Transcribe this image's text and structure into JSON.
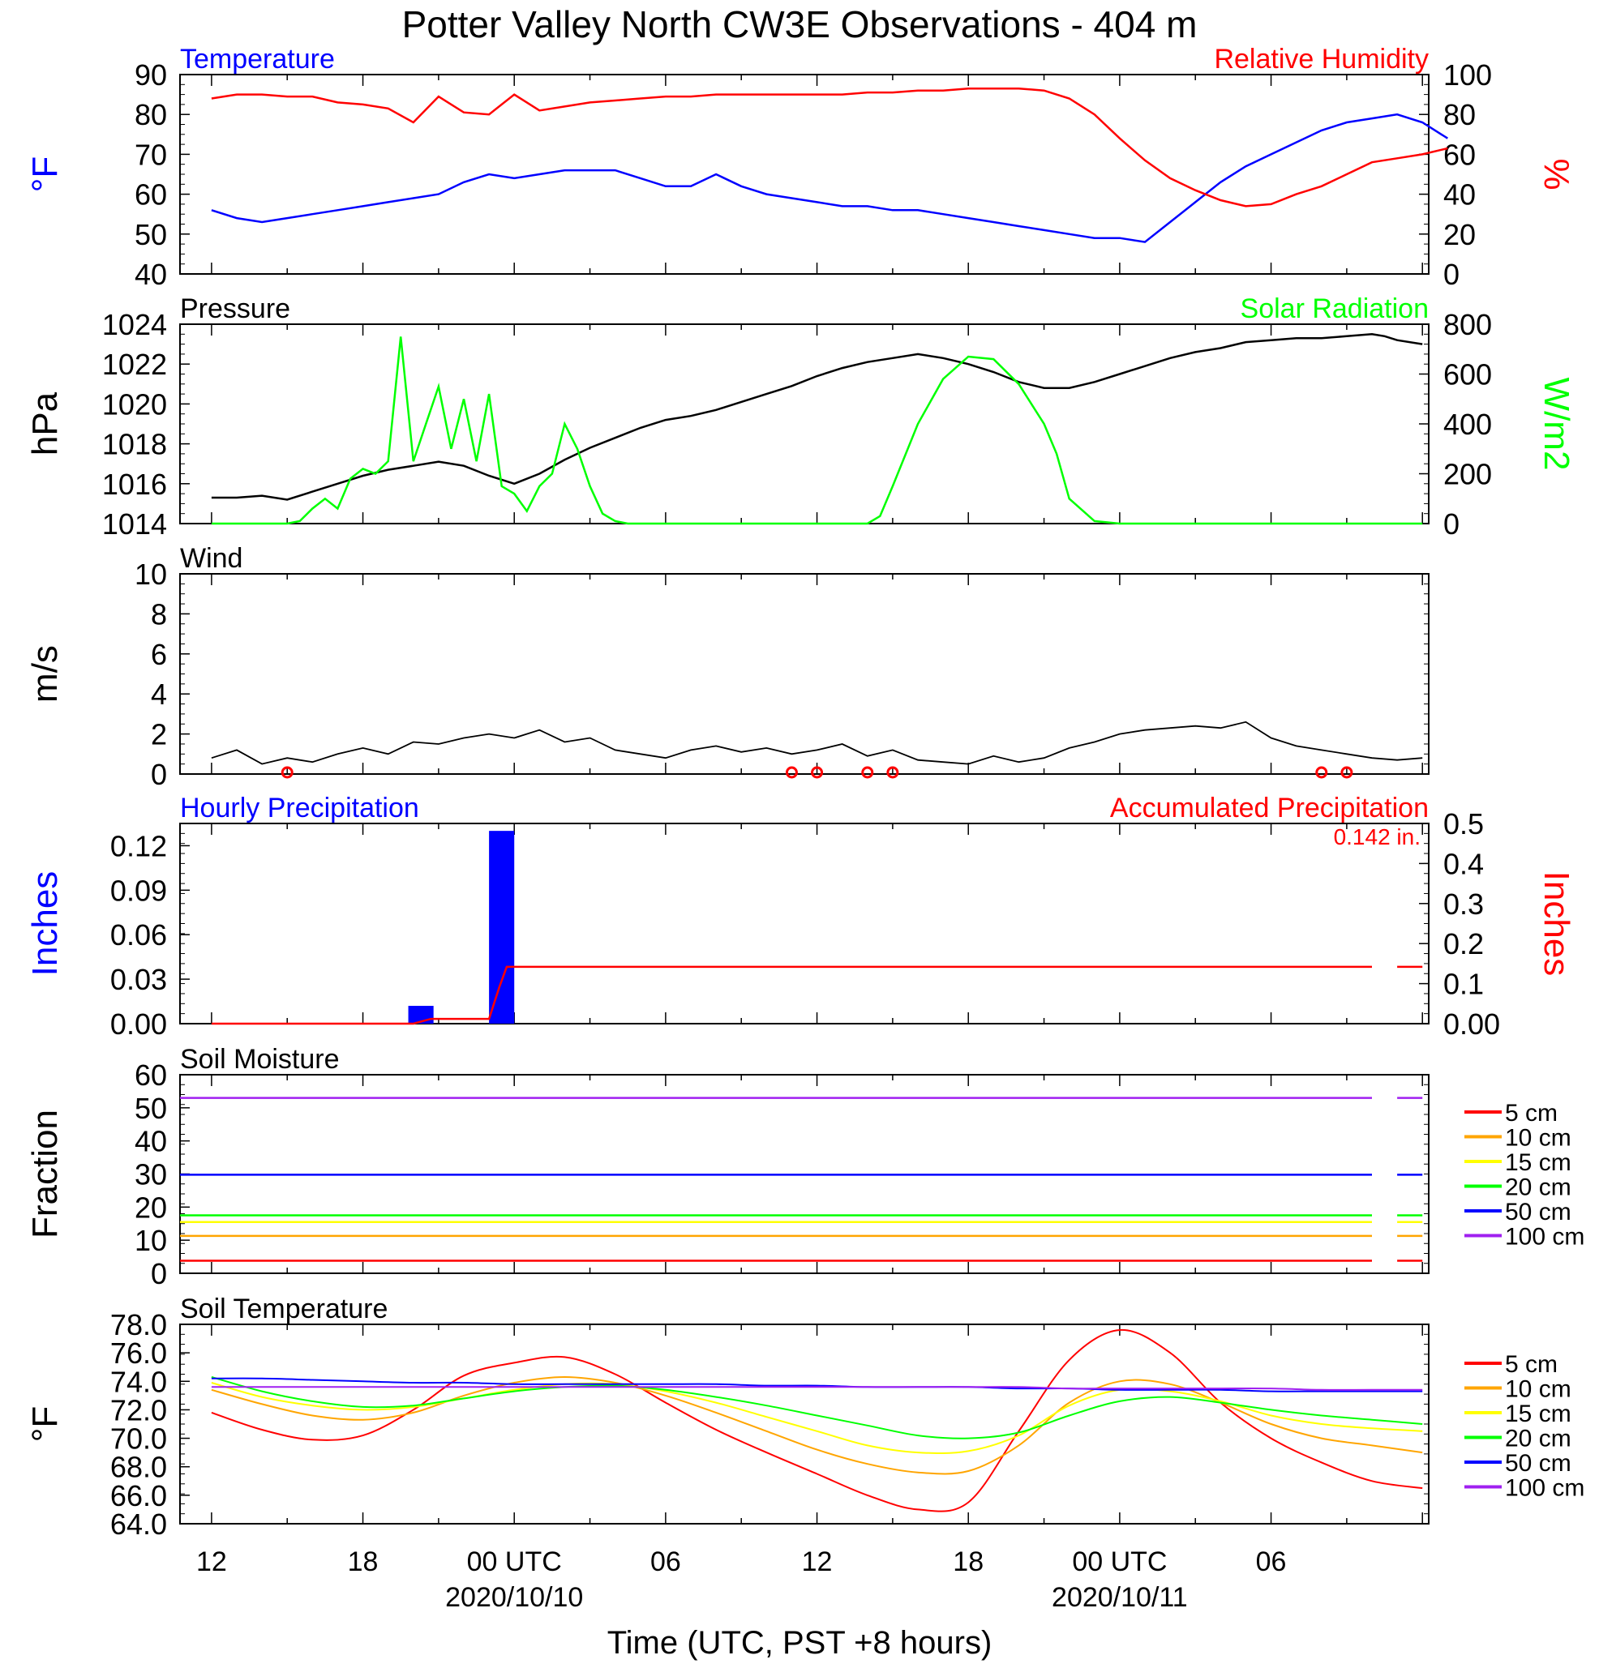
{
  "title": "Potter Valley North CW3E Observations - 404 m",
  "x_axis": {
    "label": "Time (UTC, PST +8 hours)",
    "tick_labels": [
      "12",
      "18",
      "00 UTC",
      "06",
      "12",
      "18",
      "00 UTC",
      "06"
    ],
    "date_labels": [
      "2020/10/10",
      "2020/10/11"
    ]
  },
  "legend": {
    "entries": [
      "5 cm",
      "10 cm",
      "15 cm",
      "20 cm",
      "50 cm",
      "100 cm"
    ],
    "colors": [
      "#ff0000",
      "#ffa500",
      "#ffff00",
      "#00ff00",
      "#0000ff",
      "#a020f0"
    ]
  },
  "chart_data": [
    {
      "type": "line",
      "title_left": "Temperature",
      "title_right": "Relative Humidity",
      "ylabel_left": "°F",
      "ylabel_right": "%",
      "ylim_left": [
        40,
        90
      ],
      "ylim_right": [
        0,
        100
      ],
      "yticks_left": [
        "90",
        "80",
        "70",
        "60",
        "50",
        "40"
      ],
      "yticks_right": [
        "100",
        "80",
        "60",
        "40",
        "20",
        "0"
      ],
      "x_hours": [
        0,
        1,
        2,
        3,
        4,
        5,
        6,
        7,
        8,
        9,
        10,
        11,
        12,
        13,
        14,
        15,
        16,
        17,
        18,
        19,
        20,
        21,
        22,
        23,
        24,
        25,
        26,
        27,
        28,
        29,
        30,
        31,
        32,
        33,
        34,
        35,
        36,
        37,
        38,
        39,
        40,
        41,
        42,
        43,
        44,
        45,
        46,
        47,
        48,
        49
      ],
      "series": [
        {
          "name": "Temperature",
          "color": "#0000ff",
          "axis": "left",
          "values": [
            56,
            54,
            53,
            54,
            55,
            56,
            57,
            58,
            59,
            60,
            63,
            65,
            64,
            65,
            66,
            66,
            66,
            64,
            62,
            62,
            65,
            62,
            60,
            59,
            58,
            57,
            57,
            56,
            56,
            55,
            54,
            53,
            52,
            51,
            50,
            49,
            49,
            48,
            53,
            58,
            63,
            67,
            70,
            73,
            76,
            78,
            79,
            80,
            78,
            74
          ],
          "tail": {
            "x_hours": [
              48,
              49
            ],
            "values": [
              null,
              null
            ]
          }
        },
        {
          "name": "Relative Humidity",
          "color": "#ff0000",
          "axis": "right",
          "values": [
            88,
            90,
            90,
            89,
            89,
            86,
            85,
            83,
            76,
            89,
            81,
            80,
            90,
            82,
            84,
            86,
            87,
            88,
            89,
            89,
            90,
            90,
            90,
            90,
            90,
            90,
            91,
            91,
            92,
            92,
            93,
            93,
            93,
            92,
            88,
            80,
            68,
            57,
            48,
            42,
            37,
            34,
            35,
            40,
            44,
            50,
            56,
            58,
            60,
            63
          ],
          "tail": {
            "x_hours": [
              48,
              49
            ],
            "values": [
              null,
              null
            ]
          }
        }
      ]
    },
    {
      "type": "line",
      "title_left": "Pressure",
      "title_right": "Solar Radiation",
      "ylabel_left": "hPa",
      "ylabel_right": "W/m2",
      "ylim_left": [
        1014,
        1024
      ],
      "ylim_right": [
        0,
        800
      ],
      "yticks_left": [
        "1024",
        "1022",
        "1020",
        "1018",
        "1016",
        "1014"
      ],
      "yticks_right": [
        "800",
        "600",
        "400",
        "200",
        "0"
      ],
      "series": [
        {
          "name": "Pressure",
          "color": "#000000",
          "axis": "left",
          "x_hours": [
            0,
            1,
            2,
            3,
            4,
            5,
            6,
            7,
            8,
            9,
            10,
            11,
            12,
            13,
            14,
            15,
            16,
            17,
            18,
            19,
            20,
            21,
            22,
            23,
            24,
            25,
            26,
            27,
            28,
            29,
            30,
            31,
            32,
            33,
            34,
            35,
            36,
            37,
            38,
            39,
            40,
            41,
            42,
            43,
            44,
            45,
            46,
            46.5,
            47,
            48
          ],
          "values": [
            1015.3,
            1015.3,
            1015.4,
            1015.2,
            1015.6,
            1016.0,
            1016.4,
            1016.7,
            1016.9,
            1017.1,
            1016.9,
            1016.4,
            1016.0,
            1016.5,
            1017.2,
            1017.8,
            1018.3,
            1018.8,
            1019.2,
            1019.4,
            1019.7,
            1020.1,
            1020.5,
            1020.9,
            1021.4,
            1021.8,
            1022.1,
            1022.3,
            1022.5,
            1022.3,
            1022.0,
            1021.6,
            1021.1,
            1020.8,
            1020.8,
            1021.1,
            1021.5,
            1021.9,
            1022.3,
            1022.6,
            1022.8,
            1023.1,
            1023.2,
            1023.3,
            1023.3,
            1023.4,
            1023.5,
            1023.4,
            1023.2,
            1023.0
          ]
        },
        {
          "name": "Solar Radiation",
          "color": "#00ff00",
          "axis": "right",
          "x_hours": [
            0,
            1,
            2,
            3,
            3.5,
            4,
            4.5,
            5,
            5.5,
            6,
            6.5,
            7,
            7.5,
            8,
            8.5,
            9,
            9.5,
            10,
            10.5,
            11,
            11.5,
            12,
            12.5,
            13,
            13.5,
            14,
            14.5,
            15,
            15.5,
            16,
            16.5,
            17,
            17.5,
            18,
            19,
            20,
            21,
            22,
            23,
            24,
            25,
            26,
            26.5,
            27,
            28,
            29,
            30,
            31,
            32,
            33,
            33.5,
            34,
            35,
            36,
            37,
            38,
            39,
            40,
            41,
            42,
            43,
            44,
            45,
            46,
            48
          ],
          "values": [
            0,
            0,
            0,
            0,
            10,
            60,
            100,
            60,
            180,
            220,
            200,
            250,
            750,
            250,
            400,
            550,
            300,
            500,
            250,
            520,
            150,
            120,
            50,
            150,
            200,
            400,
            300,
            150,
            40,
            10,
            0,
            0,
            0,
            0,
            0,
            0,
            0,
            0,
            0,
            0,
            0,
            0,
            30,
            150,
            400,
            580,
            670,
            660,
            560,
            400,
            280,
            100,
            10,
            0,
            0,
            0,
            0,
            0,
            0,
            0,
            0,
            0,
            0,
            0,
            0
          ]
        }
      ]
    },
    {
      "type": "line",
      "title_left": "Wind",
      "ylabel_left": "m/s",
      "ylim_left": [
        0,
        10
      ],
      "yticks_left": [
        "10",
        "8",
        "6",
        "4",
        "2",
        "0"
      ],
      "series": [
        {
          "name": "Wind",
          "color": "#000000",
          "x_hours": [
            0,
            1,
            2,
            3,
            4,
            5,
            6,
            7,
            8,
            9,
            10,
            11,
            12,
            13,
            14,
            15,
            16,
            17,
            18,
            19,
            20,
            21,
            22,
            23,
            24,
            25,
            26,
            27,
            28,
            29,
            30,
            31,
            32,
            33,
            34,
            35,
            36,
            37,
            38,
            39,
            40,
            41,
            42,
            43,
            44,
            45,
            46,
            47,
            48
          ],
          "values": [
            0.8,
            1.2,
            0.5,
            0.8,
            0.6,
            1.0,
            1.3,
            1.0,
            1.6,
            1.5,
            1.8,
            2.0,
            1.8,
            2.2,
            1.6,
            1.8,
            1.2,
            1.0,
            0.8,
            1.2,
            1.4,
            1.1,
            1.3,
            1.0,
            1.2,
            1.5,
            0.9,
            1.2,
            0.7,
            0.6,
            0.5,
            0.9,
            0.6,
            0.8,
            1.3,
            1.6,
            2.0,
            2.2,
            2.3,
            2.4,
            2.3,
            2.6,
            1.8,
            1.4,
            1.2,
            1.0,
            0.8,
            0.7,
            0.8
          ]
        }
      ],
      "calm_markers_hours": [
        3,
        23,
        24,
        26,
        27,
        44,
        45
      ]
    },
    {
      "type": "bar",
      "title_left": "Hourly Precipitation",
      "title_right": "Accumulated Precipitation",
      "annotation": "0.142 in.",
      "ylabel_left": "Inches",
      "ylabel_right": "Inches",
      "ylim_left": [
        0,
        0.135
      ],
      "ylim_right": [
        0,
        0.5
      ],
      "yticks_left": [
        "0.12",
        "0.09",
        "0.06",
        "0.03",
        "0.00"
      ],
      "yticks_right": [
        "0.5",
        "0.4",
        "0.3",
        "0.2",
        "0.1",
        "0.00"
      ],
      "bars": [
        {
          "hour_start": 7.8,
          "hour_end": 8.8,
          "value": 0.012,
          "color": "#0000ff"
        },
        {
          "hour_start": 11,
          "hour_end": 12,
          "value": 0.13,
          "color": "#0000ff"
        }
      ],
      "accumulated": {
        "color": "#ff0000",
        "x_hours": [
          0,
          8.0,
          8.7,
          11.0,
          11.4,
          11.7,
          46
        ],
        "values": [
          0,
          0,
          0.012,
          0.012,
          0.09,
          0.142,
          0.142
        ],
        "tail": {
          "x_hours": [
            47,
            48
          ],
          "values": [
            0.142,
            0.142
          ]
        }
      }
    },
    {
      "type": "line",
      "title_left": "Soil Moisture",
      "ylabel_left": "Fraction",
      "ylim_left": [
        0,
        60
      ],
      "yticks_left": [
        "60",
        "50",
        "40",
        "30",
        "20",
        "10",
        "0"
      ],
      "series": [
        {
          "name": "5 cm",
          "color": "#ff0000",
          "value": 3.8
        },
        {
          "name": "10 cm",
          "color": "#ffa500",
          "value": 11.3
        },
        {
          "name": "15 cm",
          "color": "#ffff00",
          "value": 15.5
        },
        {
          "name": "20 cm",
          "color": "#00ff00",
          "value": 17.5
        },
        {
          "name": "50 cm",
          "color": "#0000ff",
          "value": 29.8
        },
        {
          "name": "100 cm",
          "color": "#a020f0",
          "value": 53
        }
      ]
    },
    {
      "type": "line",
      "title_left": "Soil Temperature",
      "ylabel_left": "°F",
      "ylim_left": [
        64,
        78
      ],
      "yticks_left": [
        "78.0",
        "76.0",
        "74.0",
        "72.0",
        "70.0",
        "68.0",
        "66.0",
        "64.0"
      ],
      "x_hours": [
        0,
        2,
        4,
        6,
        8,
        10,
        12,
        14,
        16,
        18,
        20,
        22,
        24,
        26,
        28,
        30,
        32,
        34,
        36,
        38,
        40,
        42,
        44,
        46,
        48
      ],
      "series": [
        {
          "name": "5 cm",
          "color": "#ff0000",
          "values": [
            71.8,
            70.6,
            69.9,
            70.2,
            72.0,
            74.4,
            75.3,
            75.7,
            74.5,
            72.5,
            70.6,
            69.0,
            67.5,
            66.0,
            65.0,
            65.5,
            70.5,
            75.5,
            77.6,
            76.0,
            72.5,
            70.0,
            68.3,
            67.0,
            66.5
          ]
        },
        {
          "name": "10 cm",
          "color": "#ffa500",
          "values": [
            73.4,
            72.4,
            71.6,
            71.3,
            71.8,
            73.0,
            73.9,
            74.3,
            73.9,
            73.0,
            71.8,
            70.5,
            69.2,
            68.2,
            67.6,
            67.7,
            69.5,
            72.5,
            74.0,
            73.8,
            72.5,
            71.0,
            70.0,
            69.5,
            69.0
          ]
        },
        {
          "name": "15 cm",
          "color": "#ffff00",
          "values": [
            73.9,
            72.9,
            72.3,
            72.0,
            72.2,
            72.8,
            73.4,
            73.8,
            73.8,
            73.3,
            72.5,
            71.5,
            70.5,
            69.5,
            69.0,
            69.1,
            70.2,
            72.3,
            73.4,
            73.3,
            72.6,
            71.6,
            71.0,
            70.7,
            70.5
          ]
        },
        {
          "name": "20 cm",
          "color": "#00ff00",
          "values": [
            74.3,
            73.3,
            72.6,
            72.2,
            72.3,
            72.8,
            73.3,
            73.6,
            73.7,
            73.4,
            72.9,
            72.3,
            71.6,
            70.9,
            70.2,
            70.0,
            70.4,
            71.6,
            72.6,
            72.9,
            72.5,
            72.0,
            71.6,
            71.3,
            71.0
          ]
        },
        {
          "name": "50 cm",
          "color": "#0000ff",
          "values": [
            74.2,
            74.2,
            74.1,
            74.0,
            73.9,
            73.9,
            73.8,
            73.8,
            73.8,
            73.8,
            73.8,
            73.7,
            73.7,
            73.6,
            73.6,
            73.6,
            73.5,
            73.5,
            73.4,
            73.4,
            73.4,
            73.3,
            73.3,
            73.3,
            73.3
          ]
        },
        {
          "name": "100 cm",
          "color": "#a020f0",
          "values": [
            73.6,
            73.6,
            73.6,
            73.6,
            73.6,
            73.6,
            73.6,
            73.6,
            73.6,
            73.6,
            73.6,
            73.6,
            73.6,
            73.6,
            73.6,
            73.6,
            73.6,
            73.5,
            73.5,
            73.5,
            73.5,
            73.5,
            73.4,
            73.4,
            73.4
          ]
        }
      ]
    }
  ]
}
